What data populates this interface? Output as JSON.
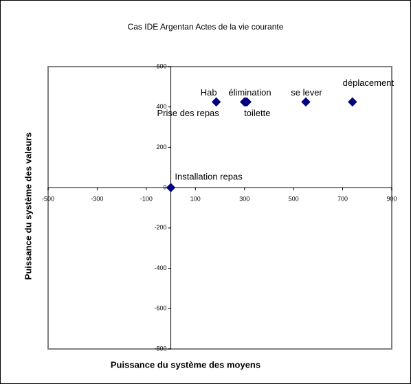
{
  "chart_data": {
    "type": "scatter",
    "title": "Cas IDE Argentan Actes de la vie courante",
    "xlabel": "Puissance du système des moyens",
    "ylabel": "Puissance du système des valeurs",
    "color": "#000080",
    "labels": [
      "Prise des repas",
      "Hab",
      "élimination",
      "toilette",
      "se lever",
      "déplacement",
      "Installation repas"
    ],
    "x": [
      185,
      300,
      305,
      310,
      550,
      740,
      0
    ],
    "values": [
      425,
      425,
      425,
      425,
      425,
      425,
      0
    ],
    "xlim": [
      -500,
      900
    ],
    "xticks": [
      -500,
      -300,
      -100,
      100,
      300,
      500,
      700,
      900
    ],
    "ylim": [
      -800,
      600
    ],
    "yticks": [
      -800,
      -600,
      -400,
      -200,
      0,
      200,
      400,
      600
    ]
  }
}
